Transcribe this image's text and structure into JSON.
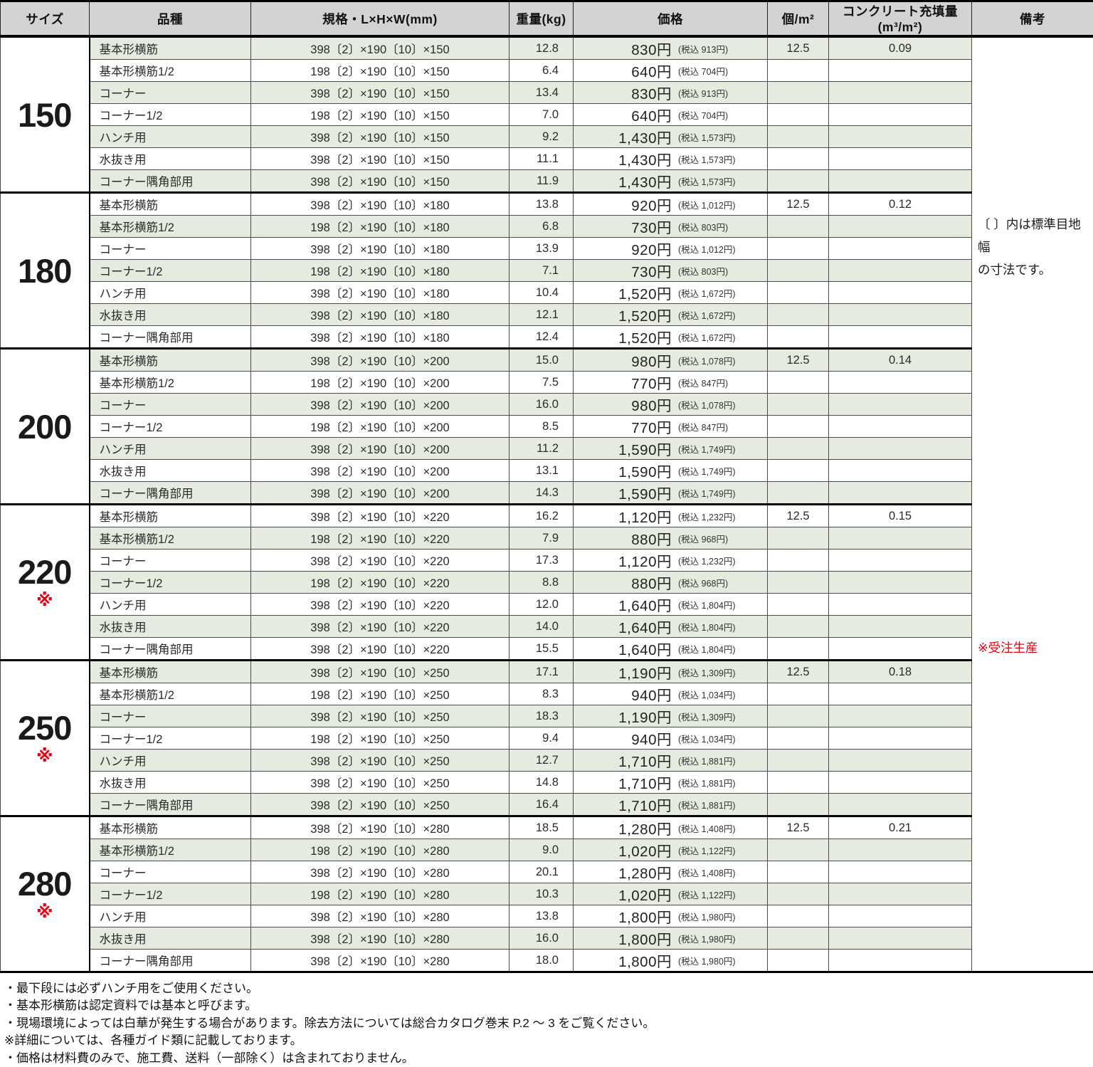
{
  "colors": {
    "accent_red": "#e60012",
    "row_green": "#e5ebde",
    "header_gray": "#d3d3d3"
  },
  "table": {
    "headers": [
      "サイズ",
      "品種",
      "規格・L×H×W(mm)",
      "重量(kg)",
      "価格",
      "個/m²",
      "コンクリート充填量(m³/m²)",
      "備考"
    ],
    "star": "※",
    "remarks": {
      "joint_width_note": "〔 〕内は標準目地幅\nの寸法です。",
      "made_to_order_note": "※受注生産"
    },
    "groups": [
      {
        "size": "150",
        "made_to_order": false,
        "per_m2": "12.5",
        "fill": "0.09",
        "rows": [
          {
            "variety": "基本形横筋",
            "spec": "398〔2〕×190〔10〕×150",
            "weight": "12.8",
            "price": "830円",
            "tax": "(税込 913円)"
          },
          {
            "variety": "基本形横筋1/2",
            "spec": "198〔2〕×190〔10〕×150",
            "weight": "6.4",
            "price": "640円",
            "tax": "(税込 704円)"
          },
          {
            "variety": "コーナー",
            "spec": "398〔2〕×190〔10〕×150",
            "weight": "13.4",
            "price": "830円",
            "tax": "(税込 913円)"
          },
          {
            "variety": "コーナー1/2",
            "spec": "198〔2〕×190〔10〕×150",
            "weight": "7.0",
            "price": "640円",
            "tax": "(税込 704円)"
          },
          {
            "variety": "ハンチ用",
            "spec": "398〔2〕×190〔10〕×150",
            "weight": "9.2",
            "price": "1,430円",
            "tax": "(税込 1,573円)"
          },
          {
            "variety": "水抜き用",
            "spec": "398〔2〕×190〔10〕×150",
            "weight": "11.1",
            "price": "1,430円",
            "tax": "(税込 1,573円)"
          },
          {
            "variety": "コーナー隅角部用",
            "spec": "398〔2〕×190〔10〕×150",
            "weight": "11.9",
            "price": "1,430円",
            "tax": "(税込 1,573円)"
          }
        ]
      },
      {
        "size": "180",
        "made_to_order": false,
        "per_m2": "12.5",
        "fill": "0.12",
        "rows": [
          {
            "variety": "基本形横筋",
            "spec": "398〔2〕×190〔10〕×180",
            "weight": "13.8",
            "price": "920円",
            "tax": "(税込 1,012円)"
          },
          {
            "variety": "基本形横筋1/2",
            "spec": "198〔2〕×190〔10〕×180",
            "weight": "6.8",
            "price": "730円",
            "tax": "(税込 803円)"
          },
          {
            "variety": "コーナー",
            "spec": "398〔2〕×190〔10〕×180",
            "weight": "13.9",
            "price": "920円",
            "tax": "(税込 1,012円)"
          },
          {
            "variety": "コーナー1/2",
            "spec": "198〔2〕×190〔10〕×180",
            "weight": "7.1",
            "price": "730円",
            "tax": "(税込 803円)"
          },
          {
            "variety": "ハンチ用",
            "spec": "398〔2〕×190〔10〕×180",
            "weight": "10.4",
            "price": "1,520円",
            "tax": "(税込 1,672円)"
          },
          {
            "variety": "水抜き用",
            "spec": "398〔2〕×190〔10〕×180",
            "weight": "12.1",
            "price": "1,520円",
            "tax": "(税込 1,672円)"
          },
          {
            "variety": "コーナー隅角部用",
            "spec": "398〔2〕×190〔10〕×180",
            "weight": "12.4",
            "price": "1,520円",
            "tax": "(税込 1,672円)"
          }
        ]
      },
      {
        "size": "200",
        "made_to_order": false,
        "per_m2": "12.5",
        "fill": "0.14",
        "rows": [
          {
            "variety": "基本形横筋",
            "spec": "398〔2〕×190〔10〕×200",
            "weight": "15.0",
            "price": "980円",
            "tax": "(税込 1,078円)"
          },
          {
            "variety": "基本形横筋1/2",
            "spec": "198〔2〕×190〔10〕×200",
            "weight": "7.5",
            "price": "770円",
            "tax": "(税込 847円)"
          },
          {
            "variety": "コーナー",
            "spec": "398〔2〕×190〔10〕×200",
            "weight": "16.0",
            "price": "980円",
            "tax": "(税込 1,078円)"
          },
          {
            "variety": "コーナー1/2",
            "spec": "198〔2〕×190〔10〕×200",
            "weight": "8.5",
            "price": "770円",
            "tax": "(税込 847円)"
          },
          {
            "variety": "ハンチ用",
            "spec": "398〔2〕×190〔10〕×200",
            "weight": "11.2",
            "price": "1,590円",
            "tax": "(税込 1,749円)"
          },
          {
            "variety": "水抜き用",
            "spec": "398〔2〕×190〔10〕×200",
            "weight": "13.1",
            "price": "1,590円",
            "tax": "(税込 1,749円)"
          },
          {
            "variety": "コーナー隅角部用",
            "spec": "398〔2〕×190〔10〕×200",
            "weight": "14.3",
            "price": "1,590円",
            "tax": "(税込 1,749円)"
          }
        ]
      },
      {
        "size": "220",
        "made_to_order": true,
        "per_m2": "12.5",
        "fill": "0.15",
        "rows": [
          {
            "variety": "基本形横筋",
            "spec": "398〔2〕×190〔10〕×220",
            "weight": "16.2",
            "price": "1,120円",
            "tax": "(税込 1,232円)"
          },
          {
            "variety": "基本形横筋1/2",
            "spec": "198〔2〕×190〔10〕×220",
            "weight": "7.9",
            "price": "880円",
            "tax": "(税込 968円)"
          },
          {
            "variety": "コーナー",
            "spec": "398〔2〕×190〔10〕×220",
            "weight": "17.3",
            "price": "1,120円",
            "tax": "(税込 1,232円)"
          },
          {
            "variety": "コーナー1/2",
            "spec": "198〔2〕×190〔10〕×220",
            "weight": "8.8",
            "price": "880円",
            "tax": "(税込 968円)"
          },
          {
            "variety": "ハンチ用",
            "spec": "398〔2〕×190〔10〕×220",
            "weight": "12.0",
            "price": "1,640円",
            "tax": "(税込 1,804円)"
          },
          {
            "variety": "水抜き用",
            "spec": "398〔2〕×190〔10〕×220",
            "weight": "14.0",
            "price": "1,640円",
            "tax": "(税込 1,804円)"
          },
          {
            "variety": "コーナー隅角部用",
            "spec": "398〔2〕×190〔10〕×220",
            "weight": "15.5",
            "price": "1,640円",
            "tax": "(税込 1,804円)"
          }
        ]
      },
      {
        "size": "250",
        "made_to_order": true,
        "per_m2": "12.5",
        "fill": "0.18",
        "rows": [
          {
            "variety": "基本形横筋",
            "spec": "398〔2〕×190〔10〕×250",
            "weight": "17.1",
            "price": "1,190円",
            "tax": "(税込 1,309円)"
          },
          {
            "variety": "基本形横筋1/2",
            "spec": "198〔2〕×190〔10〕×250",
            "weight": "8.3",
            "price": "940円",
            "tax": "(税込 1,034円)"
          },
          {
            "variety": "コーナー",
            "spec": "398〔2〕×190〔10〕×250",
            "weight": "18.3",
            "price": "1,190円",
            "tax": "(税込 1,309円)"
          },
          {
            "variety": "コーナー1/2",
            "spec": "198〔2〕×190〔10〕×250",
            "weight": "9.4",
            "price": "940円",
            "tax": "(税込 1,034円)"
          },
          {
            "variety": "ハンチ用",
            "spec": "398〔2〕×190〔10〕×250",
            "weight": "12.7",
            "price": "1,710円",
            "tax": "(税込 1,881円)"
          },
          {
            "variety": "水抜き用",
            "spec": "398〔2〕×190〔10〕×250",
            "weight": "14.8",
            "price": "1,710円",
            "tax": "(税込 1,881円)"
          },
          {
            "variety": "コーナー隅角部用",
            "spec": "398〔2〕×190〔10〕×250",
            "weight": "16.4",
            "price": "1,710円",
            "tax": "(税込 1,881円)"
          }
        ]
      },
      {
        "size": "280",
        "made_to_order": true,
        "per_m2": "12.5",
        "fill": "0.21",
        "rows": [
          {
            "variety": "基本形横筋",
            "spec": "398〔2〕×190〔10〕×280",
            "weight": "18.5",
            "price": "1,280円",
            "tax": "(税込 1,408円)"
          },
          {
            "variety": "基本形横筋1/2",
            "spec": "198〔2〕×190〔10〕×280",
            "weight": "9.0",
            "price": "1,020円",
            "tax": "(税込 1,122円)"
          },
          {
            "variety": "コーナー",
            "spec": "398〔2〕×190〔10〕×280",
            "weight": "20.1",
            "price": "1,280円",
            "tax": "(税込 1,408円)"
          },
          {
            "variety": "コーナー1/2",
            "spec": "198〔2〕×190〔10〕×280",
            "weight": "10.3",
            "price": "1,020円",
            "tax": "(税込 1,122円)"
          },
          {
            "variety": "ハンチ用",
            "spec": "398〔2〕×190〔10〕×280",
            "weight": "13.8",
            "price": "1,800円",
            "tax": "(税込 1,980円)"
          },
          {
            "variety": "水抜き用",
            "spec": "398〔2〕×190〔10〕×280",
            "weight": "16.0",
            "price": "1,800円",
            "tax": "(税込 1,980円)"
          },
          {
            "variety": "コーナー隅角部用",
            "spec": "398〔2〕×190〔10〕×280",
            "weight": "18.0",
            "price": "1,800円",
            "tax": "(税込 1,980円)"
          }
        ]
      }
    ]
  },
  "footnotes": [
    "・最下段には必ずハンチ用をご使用ください。",
    "・基本形横筋は認定資料では基本と呼びます。",
    "・現場環境によっては白華が発生する場合があります。除去方法については総合カタログ巻末 P.2 ～ 3 をご覧ください。",
    "※詳細については、各種ガイド類に記載しております。",
    "・価格は材料費のみで、施工費、送料（一部除く）は含まれておりません。"
  ]
}
